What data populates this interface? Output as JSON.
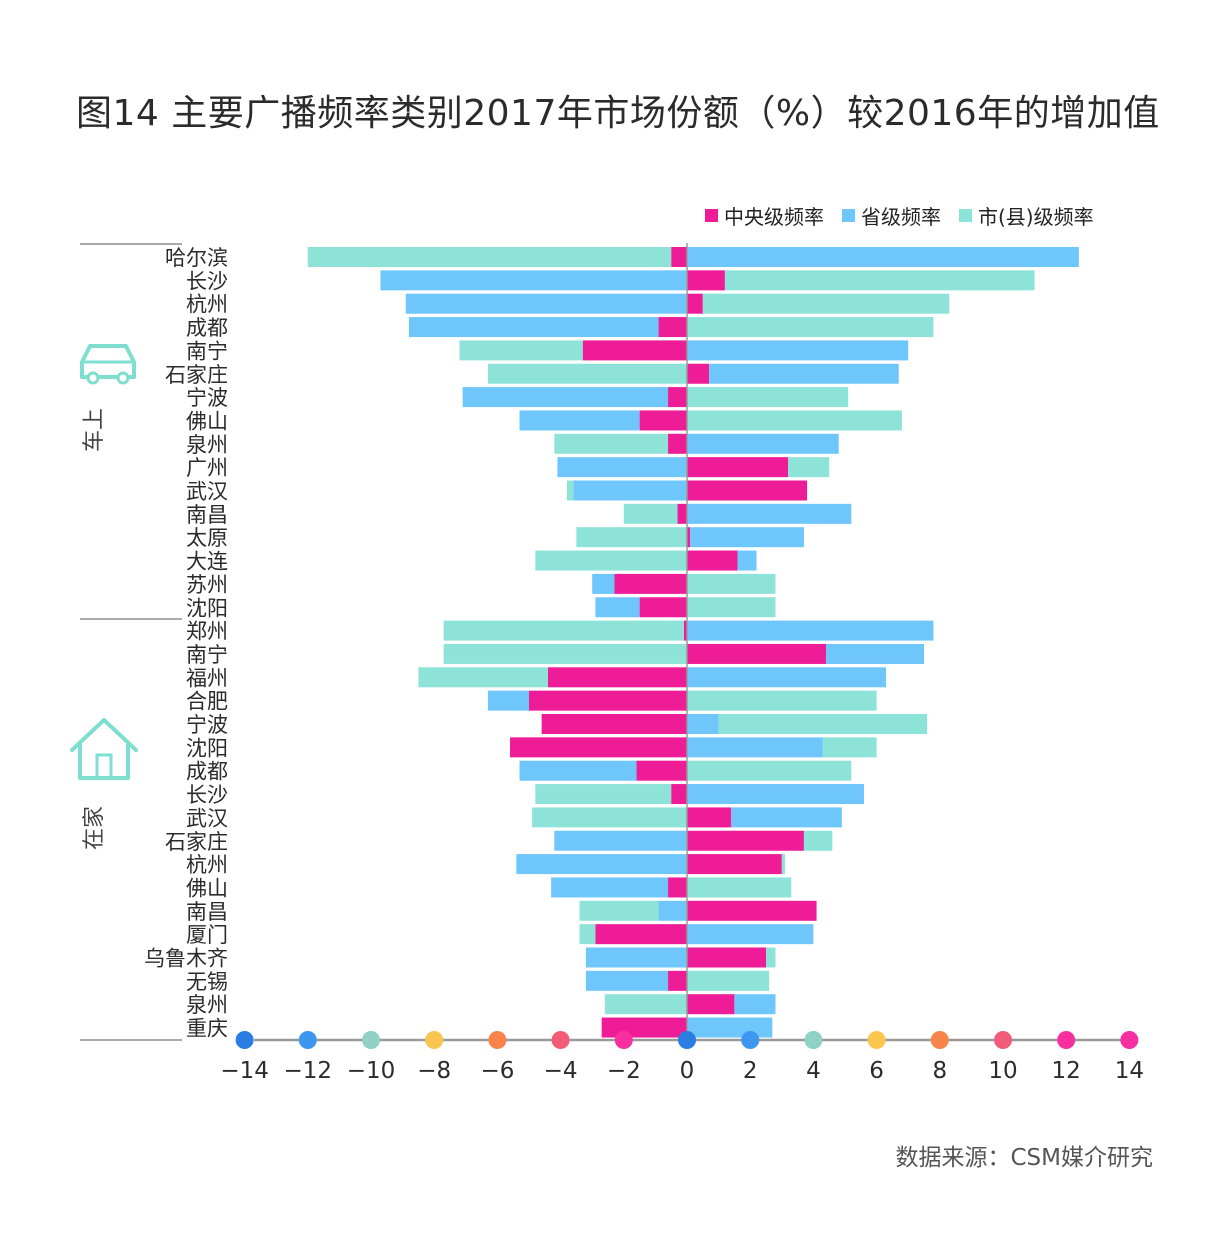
{
  "title": "图14 主要广播频率类别2017年市场份额（%）较2016年的增加值",
  "source": "数据来源：CSM媒介研究",
  "groups": [
    {
      "label": "车上",
      "icon": "car-icon"
    },
    {
      "label": "在家",
      "icon": "house-icon"
    }
  ],
  "colors": {
    "central": "#ee1c96",
    "provincial": "#6ec6fb",
    "city": "#8ee3d8",
    "axis": "#999999"
  },
  "axis_dot_colors": [
    "#2a7de1",
    "#3d97f0",
    "#8fd0c8",
    "#f9c74f",
    "#f9844a",
    "#f25c78",
    "#f72fa0",
    "#2a7de1",
    "#3d97f0",
    "#8fd0c8",
    "#f9c74f",
    "#f9844a",
    "#f25c78",
    "#f72fa0",
    "#f72fa0"
  ],
  "chart_data": {
    "type": "bar",
    "orientation": "horizontal",
    "stacked": "diverging",
    "xlim": [
      -14,
      14
    ],
    "xticks": [
      "−14",
      "−12",
      "−10",
      "−8",
      "−6",
      "−4",
      "−2",
      "0",
      "2",
      "4",
      "6",
      "8",
      "10",
      "12",
      "14"
    ],
    "legend": [
      "中央级频率",
      "省级频率",
      "市(县)级频率"
    ],
    "legend_position": "top-right",
    "categories": [
      "哈尔滨",
      "长沙",
      "杭州",
      "成都",
      "南宁",
      "石家庄",
      "宁波",
      "佛山",
      "泉州",
      "广州",
      "武汉",
      "南昌",
      "太原",
      "大连",
      "苏州",
      "沈阳",
      "郑州",
      "南宁",
      "福州",
      "合肥",
      "宁波",
      "沈阳",
      "成都",
      "长沙",
      "武汉",
      "石家庄",
      "杭州",
      "佛山",
      "南昌",
      "厦门",
      "乌鲁木齐",
      "无锡",
      "泉州",
      "重庆"
    ],
    "category_groups": [
      "车上",
      "车上",
      "车上",
      "车上",
      "车上",
      "车上",
      "车上",
      "车上",
      "车上",
      "车上",
      "车上",
      "车上",
      "车上",
      "车上",
      "车上",
      "车上",
      "在家",
      "在家",
      "在家",
      "在家",
      "在家",
      "在家",
      "在家",
      "在家",
      "在家",
      "在家",
      "在家",
      "在家",
      "在家",
      "在家",
      "在家",
      "在家",
      "在家",
      "在家"
    ],
    "series": [
      {
        "name": "中央级频率",
        "values": [
          -0.5,
          1.2,
          0.5,
          -0.9,
          -3.3,
          0.7,
          -0.6,
          -1.5,
          -0.6,
          3.2,
          3.8,
          -0.3,
          0.1,
          1.6,
          -2.3,
          -1.5,
          -0.1,
          4.4,
          -4.4,
          -5.0,
          -4.6,
          -5.6,
          -1.6,
          -0.5,
          1.4,
          3.7,
          3.0,
          -0.6,
          4.1,
          -2.9,
          2.5,
          -0.6,
          1.5,
          -2.7
        ]
      },
      {
        "name": "省级频率",
        "values": [
          12.4,
          -9.7,
          -8.9,
          -7.9,
          7.0,
          6.0,
          -6.5,
          -3.8,
          4.8,
          -4.1,
          -3.6,
          5.2,
          3.6,
          0.6,
          -0.7,
          -1.4,
          7.8,
          3.1,
          6.3,
          -1.3,
          1.0,
          4.3,
          -3.7,
          5.6,
          3.5,
          -4.2,
          -5.4,
          -3.7,
          -0.9,
          4.0,
          -3.2,
          -2.6,
          1.3,
          2.7
        ]
      },
      {
        "name": "市(县)级频率",
        "values": [
          -11.5,
          9.8,
          7.8,
          7.8,
          -3.9,
          -6.3,
          5.1,
          6.8,
          -3.6,
          1.3,
          -0.2,
          -1.7,
          -3.5,
          -4.8,
          2.8,
          2.8,
          -7.6,
          -7.7,
          -4.1,
          6.0,
          6.6,
          1.7,
          5.2,
          -4.3,
          -4.9,
          0.9,
          0.1,
          3.3,
          -2.5,
          -0.5,
          0.3,
          2.6,
          -2.6,
          0.0
        ]
      }
    ]
  }
}
